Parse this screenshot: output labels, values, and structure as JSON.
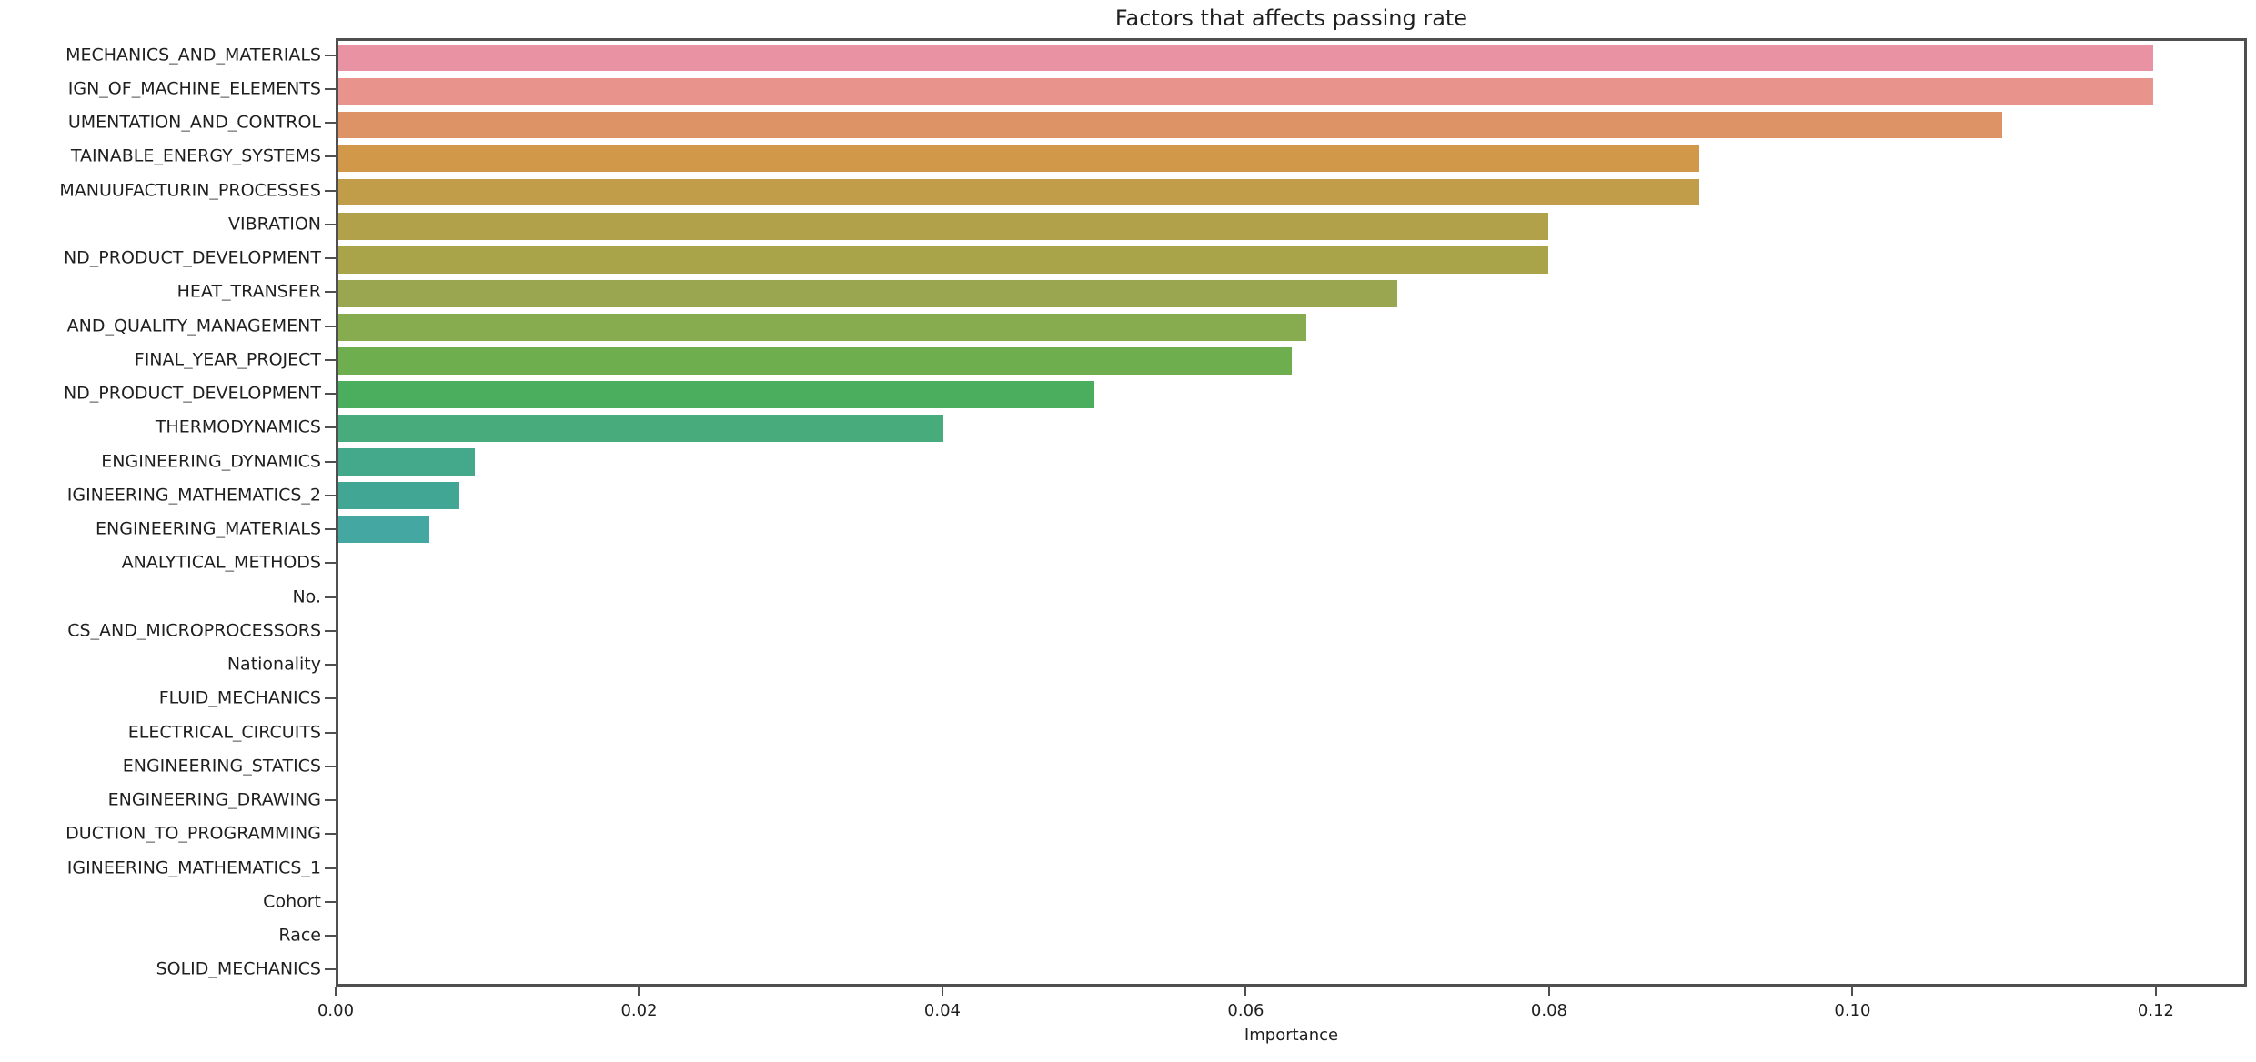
{
  "chart_data": {
    "type": "bar",
    "orientation": "horizontal",
    "title": "Factors that affects passing rate",
    "xlabel": "Importance",
    "ylabel": "",
    "xlim": [
      0,
      0.126
    ],
    "grid": false,
    "legend": "none",
    "x_ticks": [
      {
        "value": 0.0,
        "label": "0.00"
      },
      {
        "value": 0.02,
        "label": "0.02"
      },
      {
        "value": 0.04,
        "label": "0.04"
      },
      {
        "value": 0.06,
        "label": "0.06"
      },
      {
        "value": 0.08,
        "label": "0.08"
      },
      {
        "value": 0.1,
        "label": "0.10"
      },
      {
        "value": 0.12,
        "label": "0.12"
      }
    ],
    "bars": [
      {
        "label": "MECHANICS_AND_MATERIALS",
        "value": 0.12,
        "color": "#e892a4"
      },
      {
        "label": "IGN_OF_MACHINE_ELEMENTS",
        "value": 0.12,
        "color": "#e8938b"
      },
      {
        "label": "UMENTATION_AND_CONTROL",
        "value": 0.11,
        "color": "#de9366"
      },
      {
        "label": "TAINABLE_ENERGY_SYSTEMS",
        "value": 0.09,
        "color": "#d2984a"
      },
      {
        "label": "MANUUFACTURIN_PROCESSES",
        "value": 0.09,
        "color": "#c19d4a"
      },
      {
        "label": "VIBRATION",
        "value": 0.08,
        "color": "#b2a14b"
      },
      {
        "label": "ND_PRODUCT_DEVELOPMENT",
        "value": 0.08,
        "color": "#a9a349"
      },
      {
        "label": "HEAT_TRANSFER",
        "value": 0.07,
        "color": "#9aa750"
      },
      {
        "label": "AND_QUALITY_MANAGEMENT",
        "value": 0.064,
        "color": "#87ab4f"
      },
      {
        "label": "FINAL_YEAR_PROJECT",
        "value": 0.063,
        "color": "#6fae4e"
      },
      {
        "label": "ND_PRODUCT_DEVELOPMENT",
        "value": 0.05,
        "color": "#4bae5f"
      },
      {
        "label": "THERMODYNAMICS",
        "value": 0.04,
        "color": "#47ab7b"
      },
      {
        "label": "ENGINEERING_DYNAMICS",
        "value": 0.009,
        "color": "#44a98a"
      },
      {
        "label": "IGINEERING_MATHEMATICS_2",
        "value": 0.008,
        "color": "#41a794"
      },
      {
        "label": "ENGINEERING_MATERIALS",
        "value": 0.006,
        "color": "#44a7a2"
      },
      {
        "label": "ANALYTICAL_METHODS",
        "value": 0,
        "color": null
      },
      {
        "label": "No.",
        "value": 0,
        "color": null
      },
      {
        "label": "CS_AND_MICROPROCESSORS",
        "value": 0,
        "color": null
      },
      {
        "label": "Nationality",
        "value": 0,
        "color": null
      },
      {
        "label": "FLUID_MECHANICS",
        "value": 0,
        "color": null
      },
      {
        "label": "ELECTRICAL_CIRCUITS",
        "value": 0,
        "color": null
      },
      {
        "label": "ENGINEERING_STATICS",
        "value": 0,
        "color": null
      },
      {
        "label": "ENGINEERING_DRAWING",
        "value": 0,
        "color": null
      },
      {
        "label": "DUCTION_TO_PROGRAMMING",
        "value": 0,
        "color": null
      },
      {
        "label": "IGINEERING_MATHEMATICS_1",
        "value": 0,
        "color": null
      },
      {
        "label": "Cohort",
        "value": 0,
        "color": null
      },
      {
        "label": "Race",
        "value": 0,
        "color": null
      },
      {
        "label": "SOLID_MECHANICS",
        "value": 0,
        "color": null
      }
    ],
    "style": {
      "spine_color": "#4f4f4f",
      "text_color": "#1f1f1f",
      "background": "#ffffff",
      "bar_height_fraction": 0.8
    }
  }
}
